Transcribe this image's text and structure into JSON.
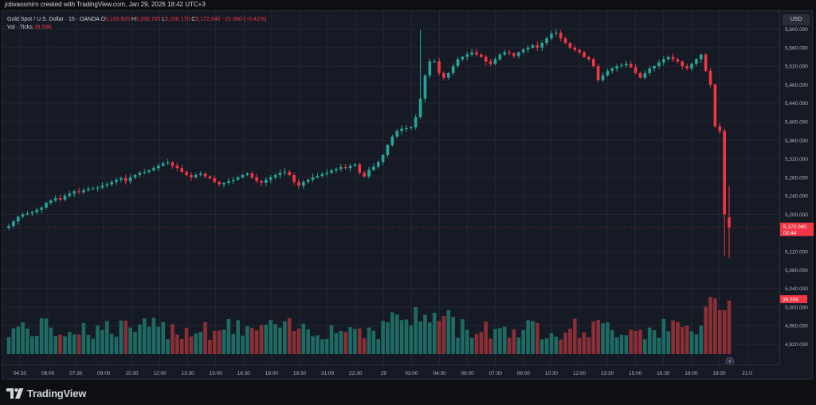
{
  "header": {
    "attribution": "jobvassmirn created with TradingView.com, Jan 29, 2026 18:42 UTC+3"
  },
  "legend": {
    "symbol": "Gold Spot / U.S. Dollar · 15 · OANDA",
    "o_label": "O",
    "o_value": "5,193.920",
    "h_label": "H",
    "h_value": "5,260.705",
    "l_label": "L",
    "l_value": "5,106.170",
    "c_label": "C",
    "c_value": "5,172.040",
    "change": "−21.080 (−0.41%)",
    "vol_label": "Vol · Ticks",
    "vol_value": "39.55K"
  },
  "currency_button": "USD",
  "price_axis": {
    "ticks": [
      "5,600.000",
      "5,560.000",
      "5,520.000",
      "5,480.000",
      "5,440.000",
      "5,400.000",
      "5,360.000",
      "5,320.000",
      "5,280.000",
      "5,240.000",
      "5,200.000",
      "5,120.000",
      "5,080.000",
      "5,040.000",
      "5,000.000",
      "4,960.000",
      "4,920.000"
    ],
    "last_price": "5,172.040",
    "countdown": "02:44",
    "volume_label": "39.55K"
  },
  "time_axis": {
    "ticks": [
      "04:30",
      "06:00",
      "07:30",
      "09:00",
      "10:30",
      "12:00",
      "13:30",
      "15:00",
      "16:30",
      "18:00",
      "19:30",
      "21:00",
      "22:30",
      "29",
      "03:00",
      "04:30",
      "06:00",
      "07:30",
      "09:00",
      "10:30",
      "12:00",
      "13:30",
      "15:00",
      "16:30",
      "18:00",
      "19:30",
      "21:0"
    ]
  },
  "colors": {
    "up": "#26a69a",
    "down": "#f23645",
    "vol_up": "#1e6b63",
    "vol_down": "#8b2f36",
    "grid": "#232733",
    "price_tag": "#f23645"
  },
  "footer": {
    "brand": "TradingView"
  },
  "chart_data": {
    "type": "candlestick",
    "title": "Gold Spot / U.S. Dollar · 15 · OANDA",
    "ylim": [
      4890,
      5625
    ],
    "close_series": [
      5175,
      5185,
      5195,
      5200,
      5202,
      5205,
      5210,
      5215,
      5225,
      5230,
      5235,
      5232,
      5240,
      5245,
      5250,
      5248,
      5252,
      5255,
      5256,
      5258,
      5262,
      5265,
      5270,
      5275,
      5278,
      5272,
      5280,
      5285,
      5290,
      5292,
      5295,
      5300,
      5305,
      5310,
      5312,
      5305,
      5300,
      5292,
      5285,
      5280,
      5285,
      5288,
      5282,
      5278,
      5270,
      5265,
      5268,
      5272,
      5275,
      5280,
      5285,
      5288,
      5280,
      5272,
      5268,
      5275,
      5280,
      5285,
      5290,
      5292,
      5285,
      5270,
      5262,
      5270,
      5275,
      5280,
      5283,
      5287,
      5290,
      5295,
      5298,
      5302,
      5300,
      5305,
      5308,
      5290,
      5282,
      5296,
      5303,
      5313,
      5328,
      5350,
      5368,
      5380,
      5385,
      5386,
      5388,
      5410,
      5450,
      5500,
      5530,
      5530,
      5505,
      5495,
      5505,
      5520,
      5535,
      5540,
      5545,
      5550,
      5545,
      5540,
      5530,
      5525,
      5535,
      5545,
      5550,
      5548,
      5542,
      5550,
      5556,
      5560,
      5565,
      5560,
      5570,
      5580,
      5590,
      5592,
      5580,
      5570,
      5560,
      5555,
      5550,
      5540,
      5535,
      5520,
      5490,
      5500,
      5510,
      5515,
      5520,
      5522,
      5525,
      5518,
      5505,
      5495,
      5505,
      5515,
      5520,
      5528,
      5535,
      5540,
      5535,
      5530,
      5520,
      5515,
      5525,
      5535,
      5545,
      5510,
      5480,
      5390,
      5380,
      5200,
      5172
    ],
    "volume_ticks_k": "39.55K (current bar)"
  }
}
